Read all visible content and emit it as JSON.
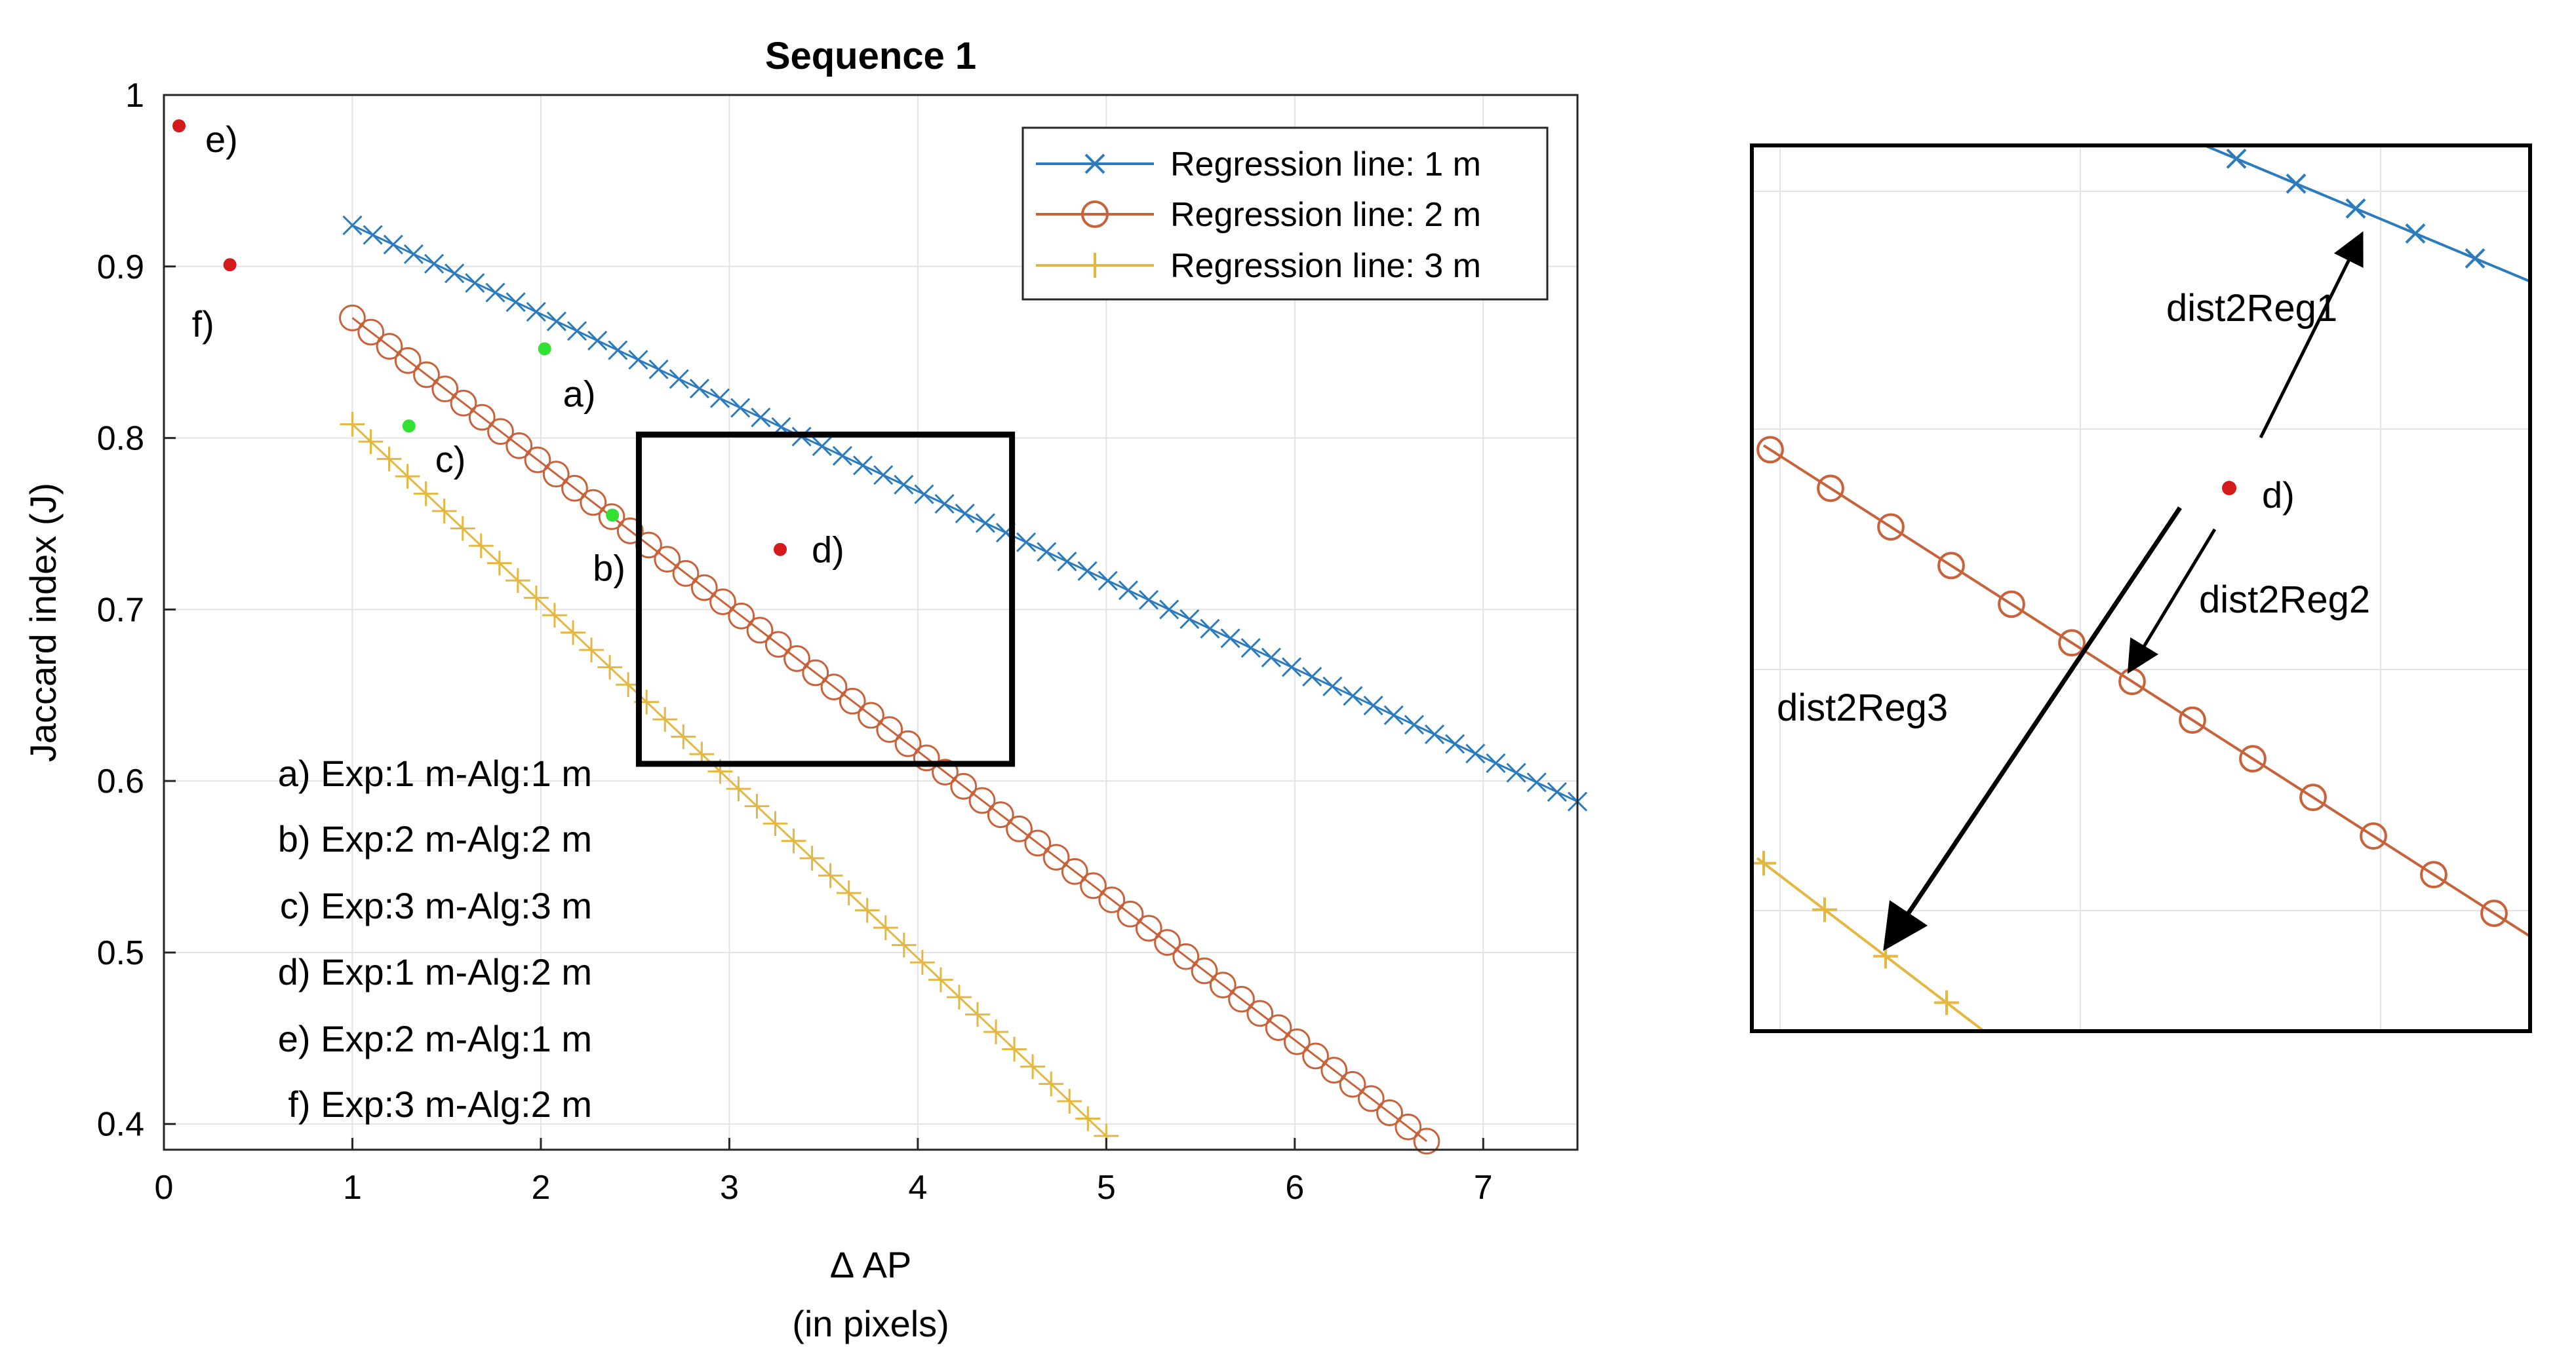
{
  "chart_data": [
    {
      "type": "line",
      "title": "Sequence 1",
      "xlabel": "Δ AP",
      "xlabel_sub": "(in pixels)",
      "ylabel": "Jaccard index (J)",
      "xlim": [
        0,
        7.5
      ],
      "ylim": [
        0.385,
        1.0
      ],
      "grid": true,
      "xticks": [
        0,
        1,
        2,
        3,
        4,
        5,
        6,
        7
      ],
      "yticks": [
        0.4,
        0.5,
        0.6,
        0.7,
        0.8,
        0.9,
        1
      ],
      "xtick_labels": [
        "0",
        "1",
        "2",
        "3",
        "4",
        "5",
        "6",
        "7"
      ],
      "ytick_labels": [
        "0.4",
        "0.5",
        "0.6",
        "0.7",
        "0.8",
        "0.9",
        "1"
      ],
      "legend_position": "top-right",
      "series": [
        {
          "name": "Regression line: 1 m",
          "marker": "x",
          "color": "#2b7bbd",
          "x_start": 1.0,
          "x_end": 7.5,
          "y_start": 0.924,
          "y_end": 0.588,
          "n_markers": 61
        },
        {
          "name": "Regression line: 2 m",
          "marker": "o",
          "color": "#c8623b",
          "x_start": 1.0,
          "x_end": 6.7,
          "y_start": 0.87,
          "y_end": 0.39,
          "n_markers": 59
        },
        {
          "name": "Regression line: 3 m",
          "marker": "+",
          "color": "#e3b740",
          "x_start": 1.0,
          "x_end": 5.0,
          "y_start": 0.808,
          "y_end": 0.393,
          "n_markers": 42
        }
      ],
      "points": [
        {
          "label": "a)",
          "x": 2.02,
          "y": 0.852,
          "color": "#33e133"
        },
        {
          "label": "b)",
          "x": 2.38,
          "y": 0.755,
          "color": "#33e133"
        },
        {
          "label": "c)",
          "x": 1.3,
          "y": 0.807,
          "color": "#33e133"
        },
        {
          "label": "d)",
          "x": 3.27,
          "y": 0.735,
          "color": "#d41a1a"
        },
        {
          "label": "e)",
          "x": 0.08,
          "y": 0.982,
          "color": "#d41a1a"
        },
        {
          "label": "f)",
          "x": 0.35,
          "y": 0.901,
          "color": "#d41a1a"
        }
      ],
      "annotations": [
        "a) Exp:1 m-Alg:1 m",
        "b) Exp:2 m-Alg:2 m",
        "c) Exp:3 m-Alg:3 m",
        "d) Exp:1 m-Alg:2 m",
        "e) Exp:2 m-Alg:1 m",
        "f) Exp:3 m-Alg:2 m"
      ],
      "highlight_box": {
        "x_range": [
          2.52,
          4.5
        ],
        "y_range": [
          0.61,
          0.802
        ]
      }
    },
    {
      "type": "line",
      "title": "",
      "description_labels": {
        "point": "d)",
        "arrows": [
          "dist2Reg1",
          "dist2Reg2",
          "dist2Reg3"
        ]
      },
      "series": [
        {
          "name": "Regression line: 1 m",
          "marker": "x",
          "color": "#2b7bbd"
        },
        {
          "name": "Regression line: 2 m",
          "marker": "o",
          "color": "#c8623b"
        },
        {
          "name": "Regression line: 3 m",
          "marker": "+",
          "color": "#e3b740"
        }
      ]
    }
  ]
}
